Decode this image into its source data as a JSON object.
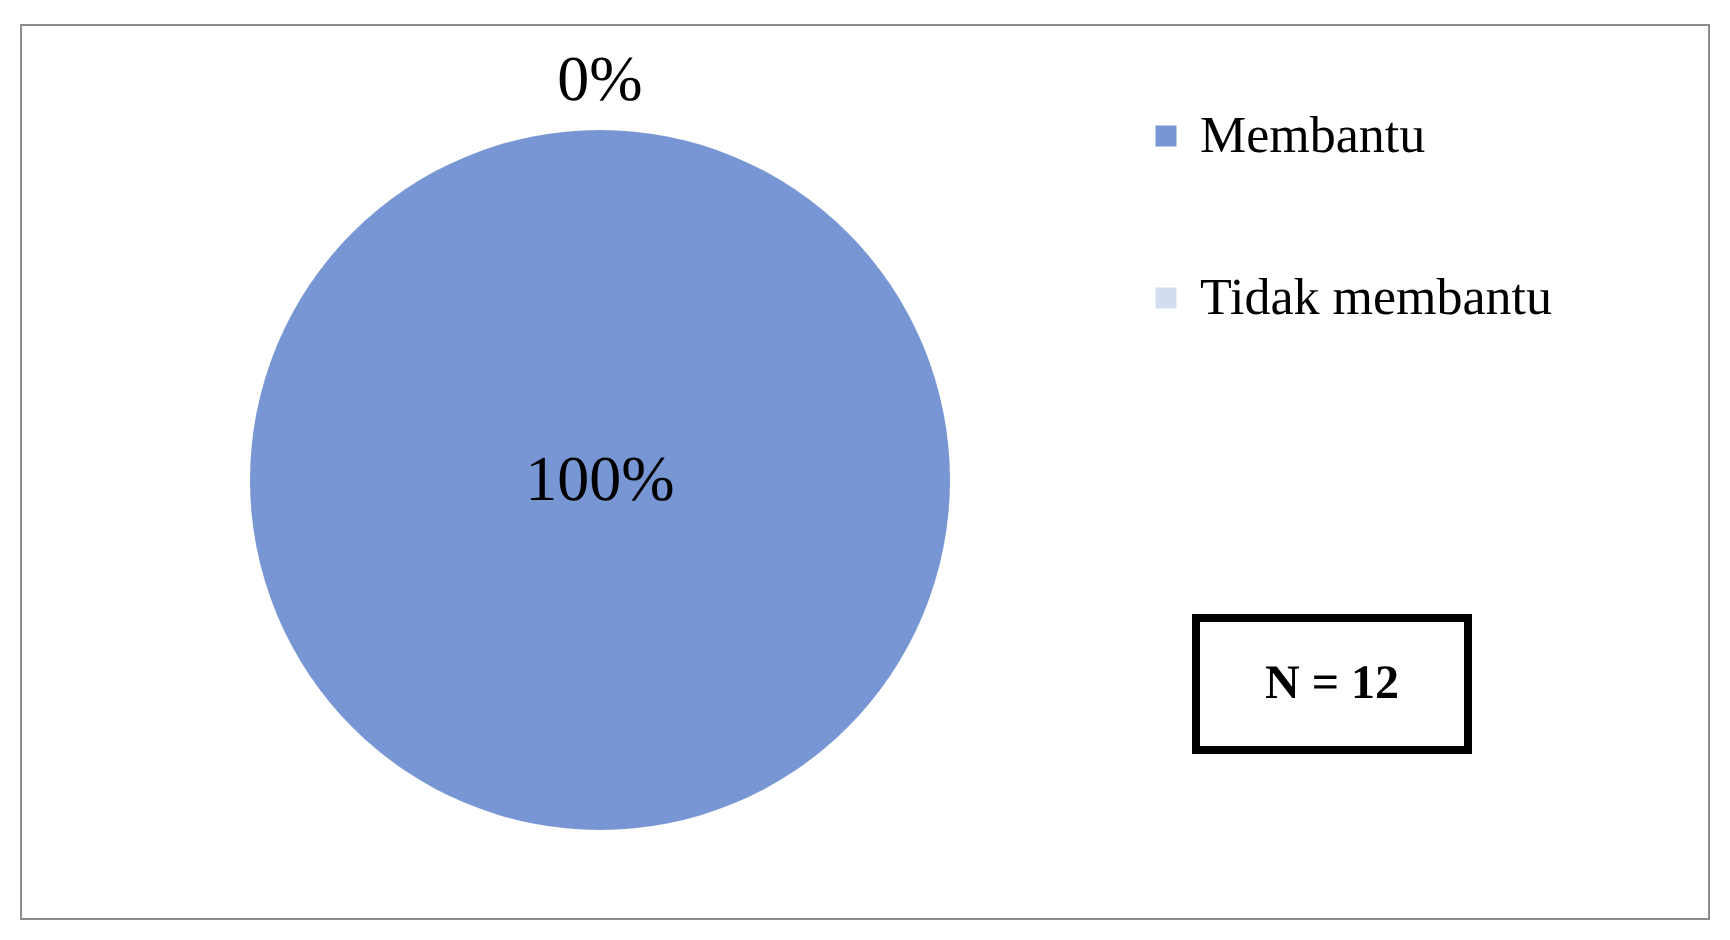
{
  "chart_data": {
    "type": "pie",
    "categories": [
      "Membantu",
      "Tidak membantu"
    ],
    "values": [
      100,
      0
    ],
    "value_labels": [
      "100%",
      "0%"
    ],
    "colors": [
      "#7896d4",
      "#d3ddf0"
    ],
    "legend": "right",
    "annotations": [
      "N = 12"
    ]
  }
}
